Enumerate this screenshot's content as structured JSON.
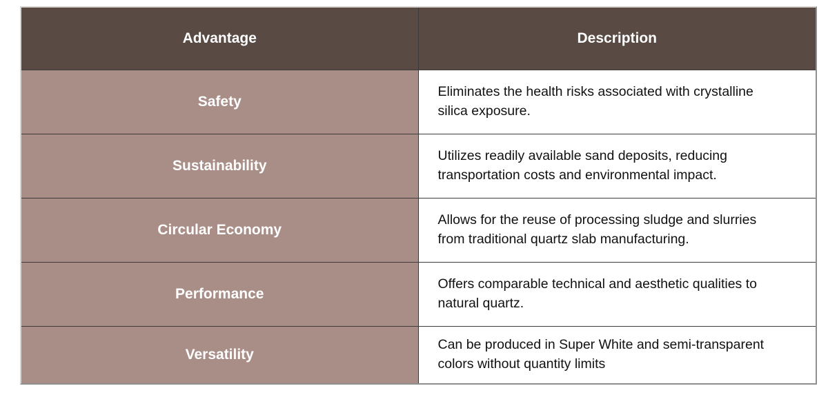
{
  "table": {
    "headers": [
      {
        "label": "Advantage"
      },
      {
        "label": "Description"
      }
    ],
    "rows": [
      {
        "advantage": "Safety",
        "description": "Eliminates the health risks associated with crystalline silica exposure."
      },
      {
        "advantage": "Sustainability",
        "description": "Utilizes readily available sand deposits, reducing transportation costs and environmental impact."
      },
      {
        "advantage": "Circular Economy",
        "description": "Allows for the reuse of processing sludge and slurries from traditional quartz slab manufacturing."
      },
      {
        "advantage": "Performance",
        "description": "Offers comparable technical and aesthetic qualities to natural quartz."
      },
      {
        "advantage": "Versatility",
        "description": "Can be produced in Super White and semi-transparent colors without quantity limits"
      }
    ],
    "colors": {
      "header_bg": "#594a43",
      "header_text": "#ffffff",
      "advantage_bg": "#a98e87",
      "advantage_text": "#ffffff",
      "description_bg": "#ffffff",
      "description_text": "#111111",
      "grid_line": "#3e3a39"
    }
  }
}
